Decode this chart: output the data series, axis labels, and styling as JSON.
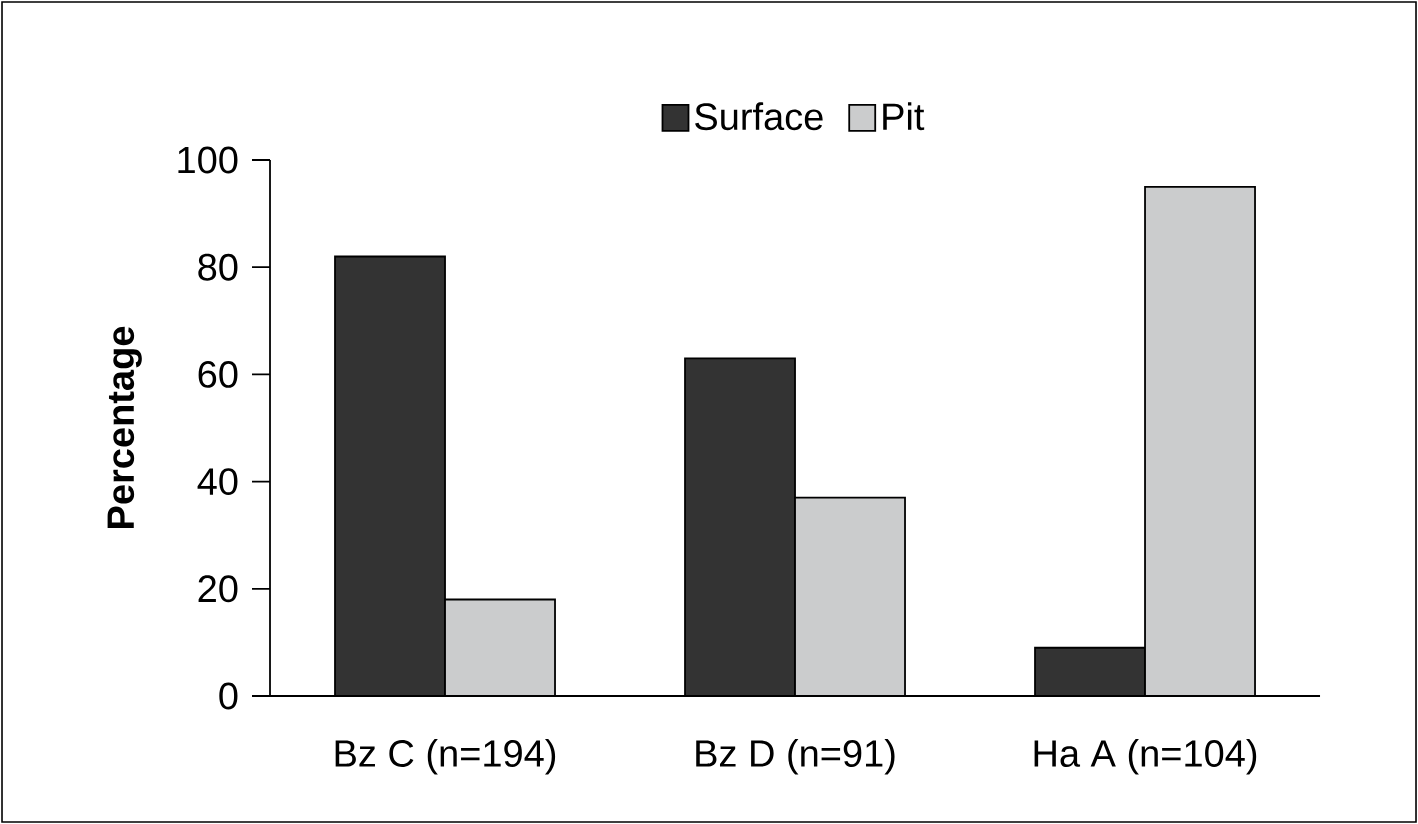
{
  "chart_data": {
    "type": "bar",
    "ylabel": "Percentage",
    "categories": [
      "Bz C (n=194)",
      "Bz D (n=91)",
      "Ha A (n=104)"
    ],
    "series": [
      {
        "name": "Surface",
        "color": "#333333",
        "values": [
          82,
          63,
          9
        ]
      },
      {
        "name": "Pit",
        "color": "#cbcccd",
        "values": [
          18,
          37,
          95
        ]
      }
    ],
    "ylim": [
      0,
      100
    ],
    "yticks": [
      0,
      20,
      40,
      60,
      80,
      100
    ],
    "legend": "top"
  }
}
